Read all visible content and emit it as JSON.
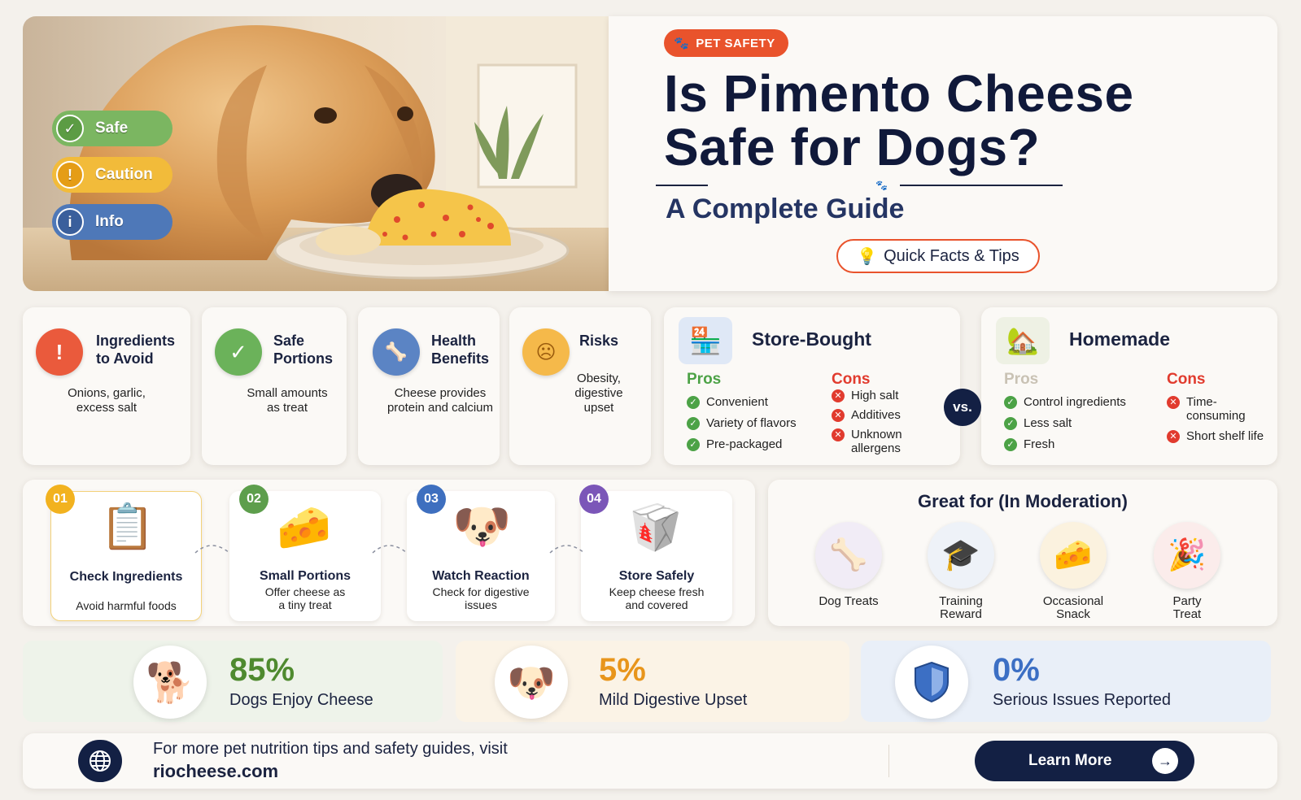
{
  "hero": {
    "legend": [
      {
        "label": "Safe",
        "color": "#7bb661",
        "icon": "check-icon"
      },
      {
        "label": "Caution",
        "color": "#f2bb3a",
        "icon": "warning-icon"
      },
      {
        "label": "Info",
        "color": "#4e78b8",
        "icon": "info-icon"
      }
    ],
    "badge": "PET SAFETY",
    "title_line1": "Is Pimento Cheese",
    "title_line2": "Safe for Dogs?",
    "subtitle": "A Complete Guide",
    "quick_facts": "Quick Facts & Tips"
  },
  "info_cards": [
    {
      "title_line1": "Ingredients",
      "title_line2": "to Avoid",
      "desc_line1": "Onions, garlic,",
      "desc_line2": "excess salt",
      "desc_line3": "",
      "color": "#ea5a3c",
      "icon": "warning-icon"
    },
    {
      "title_line1": "Safe",
      "title_line2": "Portions",
      "desc_line1": "Small amounts",
      "desc_line2": "as treat",
      "desc_line3": "",
      "color": "#6bb25a",
      "icon": "check-icon"
    },
    {
      "title_line1": "Health",
      "title_line2": "Benefits",
      "desc_line1": "Cheese provides",
      "desc_line2": "protein and calcium",
      "desc_line3": "",
      "color": "#5b84c4",
      "icon": "bone-icon"
    },
    {
      "title_line1": "Risks",
      "title_line2": "",
      "desc_line1": "Obesity,",
      "desc_line2": "digestive",
      "desc_line3": "upset",
      "color": "#f5b94a",
      "icon": "sad-face-icon"
    }
  ],
  "store_bought": {
    "title": "Store-Bought",
    "pros_label": "Pros",
    "pros": [
      "Convenient",
      "Variety of flavors",
      "Pre-packaged"
    ],
    "cons_label": "Cons",
    "cons": [
      "High salt",
      "Additives",
      "Unknown allergens"
    ]
  },
  "vs_label": "vs.",
  "homemade": {
    "title": "Homemade",
    "pros_label": "Pros",
    "pros": [
      "Control ingredients",
      "Less salt",
      "Fresh"
    ],
    "cons_label": "Cons",
    "cons": [
      "Time-consuming",
      "Short shelf life"
    ]
  },
  "steps": [
    {
      "num": "01",
      "title": "Check Ingredients",
      "desc_line1": "Avoid harmful foods",
      "desc_line2": "",
      "color": "#f2b21f",
      "icon": "clipboard-icon"
    },
    {
      "num": "02",
      "title": "Small Portions",
      "desc_line1": "Offer cheese as",
      "desc_line2": "a tiny treat",
      "color": "#5d9e4c",
      "icon": "cheese-bowl-icon"
    },
    {
      "num": "03",
      "title": "Watch Reaction",
      "desc_line1": "Check for digestive",
      "desc_line2": "issues",
      "color": "#3e6fbf",
      "icon": "puppy-icon"
    },
    {
      "num": "04",
      "title": "Store Safely",
      "desc_line1": "Keep cheese fresh",
      "desc_line2": "and covered",
      "color": "#7b56b8",
      "icon": "container-icon"
    }
  ],
  "great_for": {
    "title": "Great for (In Moderation)",
    "items": [
      {
        "line1": "Dog Treats",
        "line2": "",
        "icon": "bone-icon"
      },
      {
        "line1": "Training",
        "line2": "Reward",
        "icon": "graduation-cap-icon"
      },
      {
        "line1": "Occasional",
        "line2": "Snack",
        "icon": "cheese-icon"
      },
      {
        "line1": "Party",
        "line2": "Treat",
        "icon": "party-hat-icon"
      }
    ]
  },
  "stats": [
    {
      "value": "85%",
      "label": "Dogs Enjoy Cheese",
      "color": "#4f8a2f",
      "bg": "#eef3ea",
      "icon": "happy-dog-icon"
    },
    {
      "value": "5%",
      "label": "Mild Digestive Upset",
      "color": "#e8951b",
      "bg": "#fbf3e6",
      "icon": "dog-face-icon"
    },
    {
      "value": "0%",
      "label": "Serious Issues Reported",
      "color": "#3c6fc4",
      "bg": "#e9eff8",
      "icon": "shield-icon"
    }
  ],
  "footer": {
    "text": "For more pet nutrition tips and safety guides, visit",
    "site": "riocheese.com",
    "button": "Learn More"
  }
}
